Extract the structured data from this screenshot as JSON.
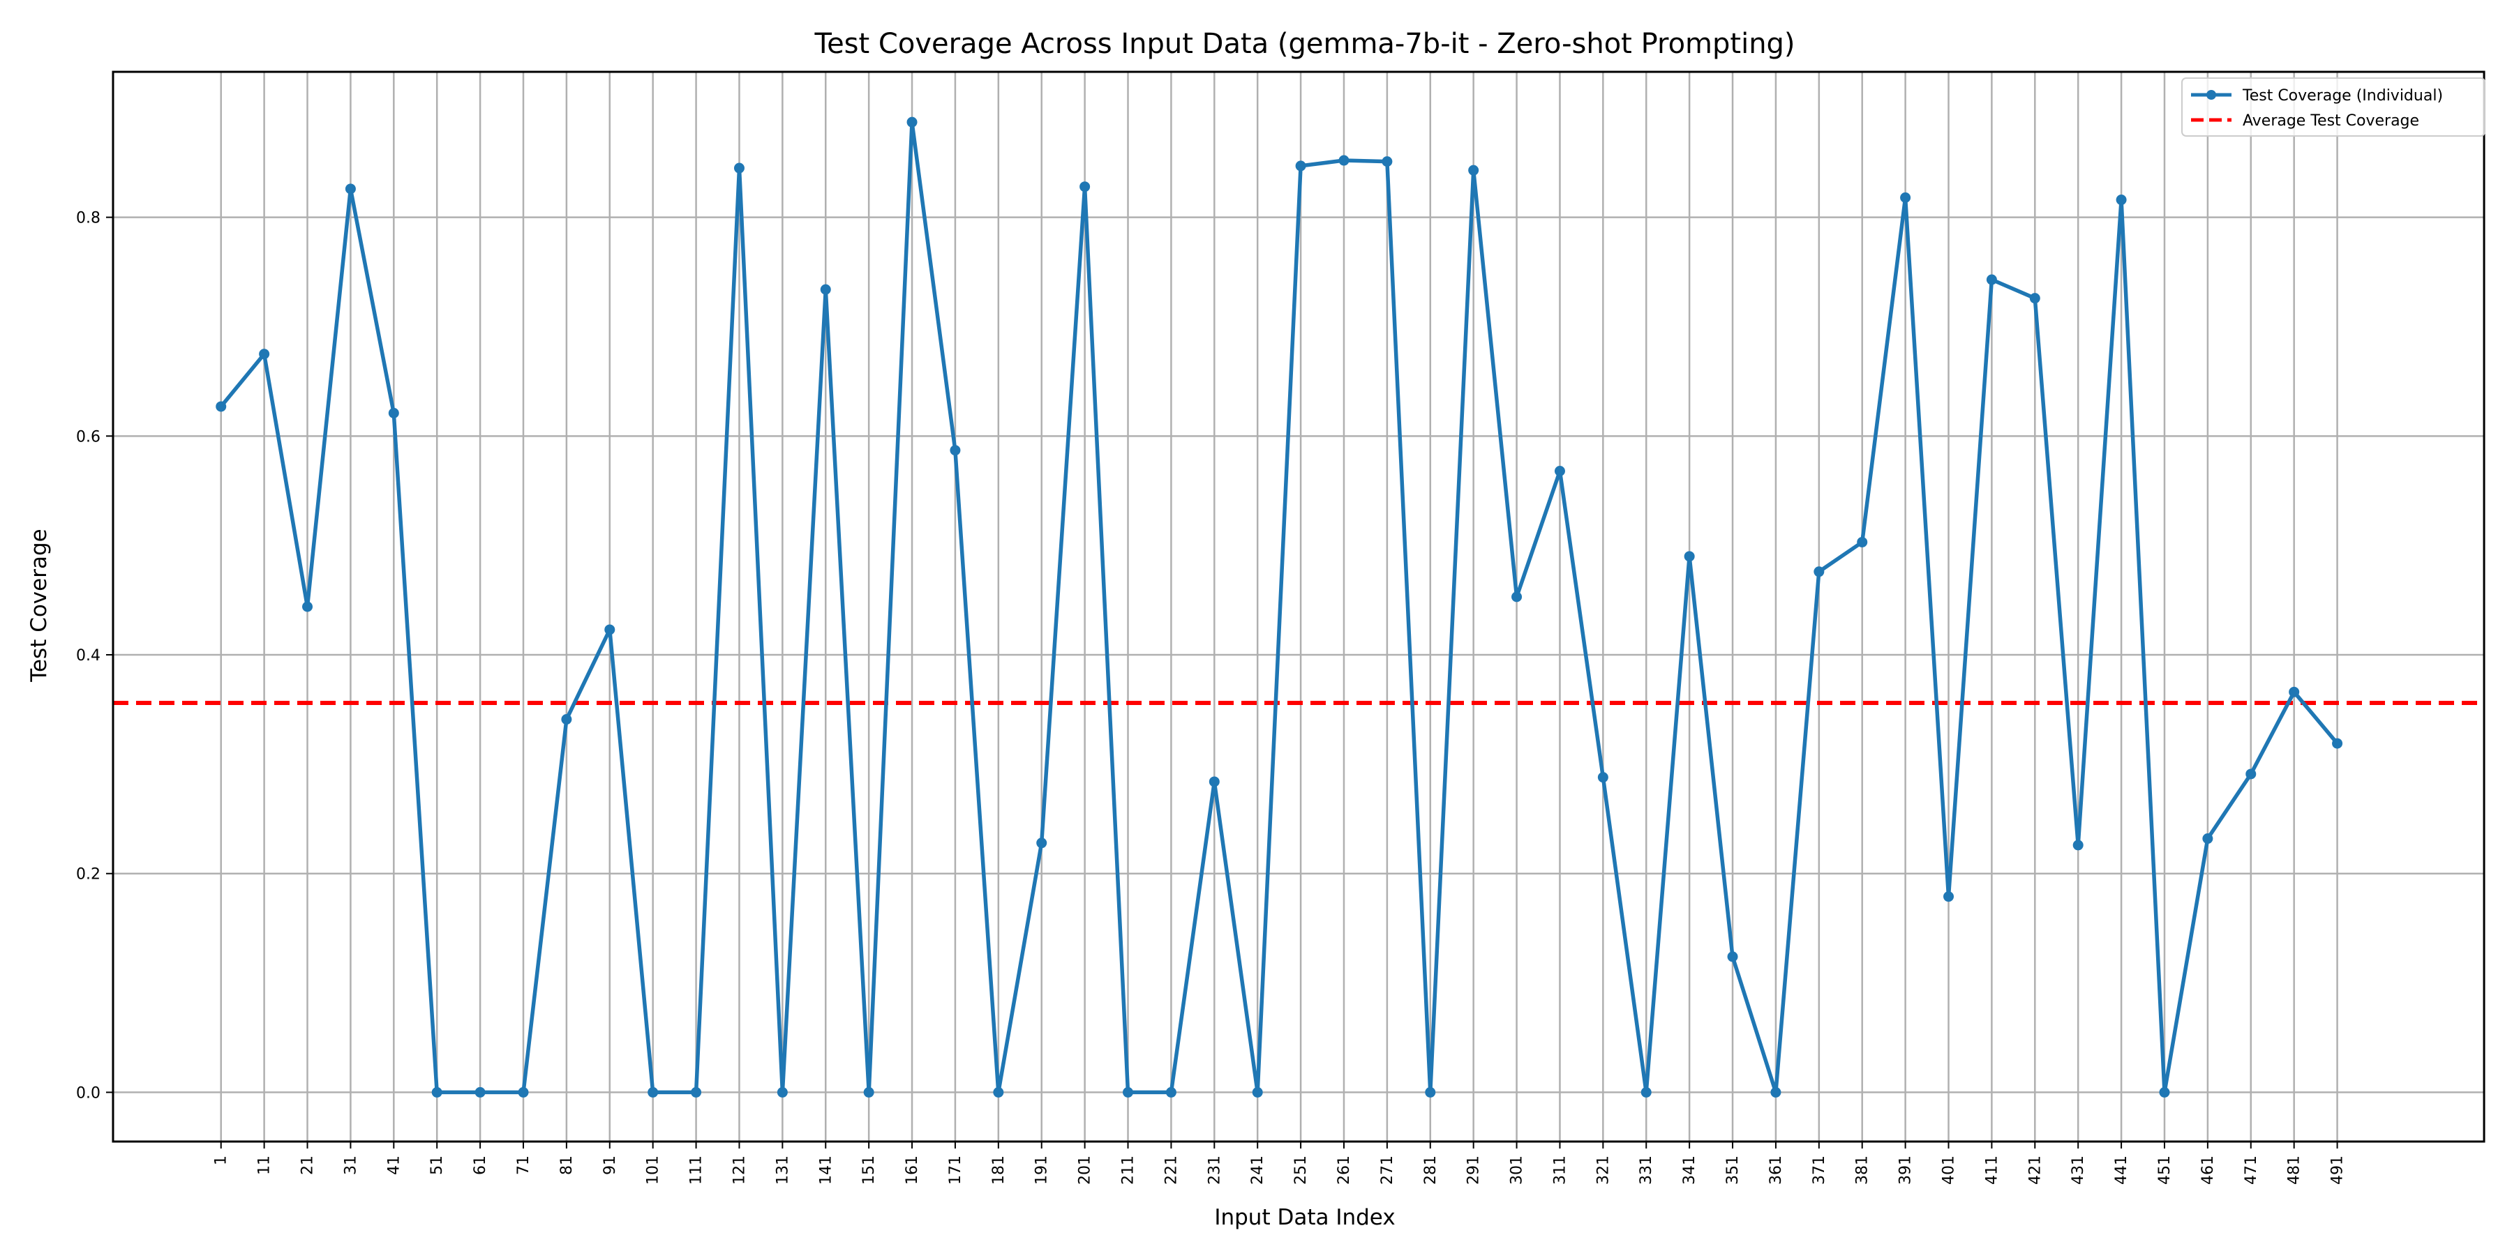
{
  "chart_data": {
    "type": "line",
    "title": "Test Coverage Across Input Data (gemma-7b-it - Zero-shot Prompting)",
    "xlabel": "Input Data Index",
    "ylabel": "Test Coverage",
    "x": [
      1,
      11,
      21,
      31,
      41,
      51,
      61,
      71,
      81,
      91,
      101,
      111,
      121,
      131,
      141,
      151,
      161,
      171,
      181,
      191,
      201,
      211,
      221,
      231,
      241,
      251,
      261,
      271,
      281,
      291,
      301,
      311,
      321,
      331,
      341,
      351,
      361,
      371,
      381,
      391,
      401,
      411,
      421,
      431,
      441,
      451,
      461,
      471,
      481,
      491
    ],
    "x_ticks": [
      "1",
      "11",
      "21",
      "31",
      "41",
      "51",
      "61",
      "71",
      "81",
      "91",
      "101",
      "111",
      "121",
      "131",
      "141",
      "151",
      "161",
      "171",
      "181",
      "191",
      "201",
      "211",
      "221",
      "231",
      "241",
      "251",
      "261",
      "271",
      "281",
      "291",
      "301",
      "311",
      "321",
      "331",
      "341",
      "351",
      "361",
      "371",
      "381",
      "391",
      "401",
      "411",
      "421",
      "431",
      "441",
      "451",
      "461",
      "471",
      "481",
      "491"
    ],
    "y_ticks": [
      "0.0",
      "0.2",
      "0.4",
      "0.6",
      "0.8"
    ],
    "ylim": [
      -0.045,
      0.933
    ],
    "xlim": [
      -24,
      525
    ],
    "grid": true,
    "legend_position": "top-right",
    "series": [
      {
        "name": "Test Coverage (Individual)",
        "color": "#1f77b4",
        "marker": "circle",
        "values": [
          0.627,
          0.675,
          0.444,
          0.826,
          0.621,
          0.0,
          0.0,
          0.0,
          0.341,
          0.423,
          0.0,
          0.0,
          0.845,
          0.0,
          0.734,
          0.0,
          0.887,
          0.587,
          0.0,
          0.228,
          0.828,
          0.0,
          0.0,
          0.284,
          0.0,
          0.847,
          0.852,
          0.851,
          0.0,
          0.843,
          0.453,
          0.568,
          0.288,
          0.0,
          0.49,
          0.124,
          0.0,
          0.476,
          0.503,
          0.818,
          0.179,
          0.743,
          0.726,
          0.226,
          0.816,
          0.0,
          0.232,
          0.291,
          0.366,
          0.319
        ]
      }
    ],
    "average": {
      "name": "Average Test Coverage",
      "color": "#ff0000",
      "style": "dashed",
      "value": 0.356
    }
  }
}
